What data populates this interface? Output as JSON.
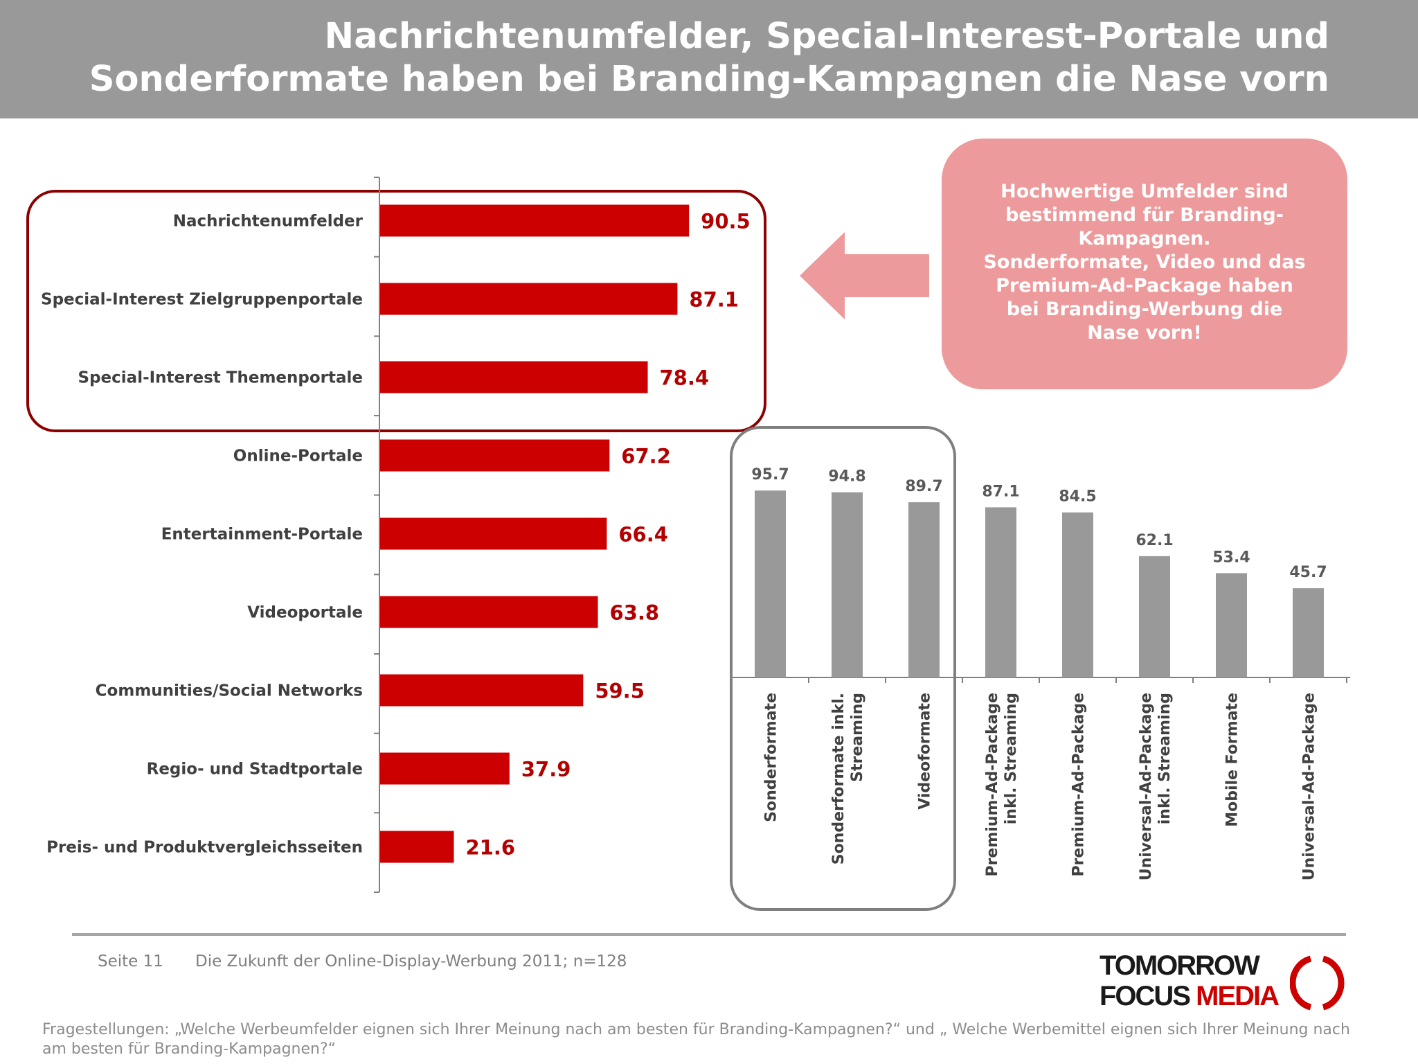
{
  "header": {
    "title_line1": "Nachrichtenumfelder, Special-Interest-Portale und",
    "title_line2": "Sonderformate haben bei Branding-Kampagnen die Nase vorn"
  },
  "callout": {
    "lines": [
      "Hochwertige Umfelder sind",
      "bestimmend für Branding-",
      "Kampagnen.",
      "Sonderformate, Video und das",
      "Premium-Ad-Package haben",
      "bei Branding-Werbung die",
      "Nase vorn!"
    ]
  },
  "chart_data": [
    {
      "type": "bar",
      "orientation": "horizontal",
      "categories": [
        "Nachrichtenumfelder",
        "Special-Interest Zielgruppenportale",
        "Special-Interest Themenportale",
        "Online-Portale",
        "Entertainment-Portale",
        "Videoportale",
        "Communities/Social Networks",
        "Regio- und Stadtportale",
        "Preis- und Produktvergleichsseiten"
      ],
      "values": [
        90.5,
        87.1,
        78.4,
        67.2,
        66.4,
        63.8,
        59.5,
        37.9,
        21.6
      ],
      "value_labels": [
        "90.5",
        "87.1",
        "78.4",
        "67.2",
        "66.4",
        "63.8",
        "59.5",
        "37.9",
        "21.6"
      ],
      "highlighted": [
        "Nachrichtenumfelder",
        "Special-Interest Zielgruppenportale",
        "Special-Interest Themenportale"
      ],
      "xlim": [
        0,
        100
      ],
      "bar_color": "#cc0000",
      "label_color": "#b30000"
    },
    {
      "type": "bar",
      "orientation": "vertical",
      "categories": [
        [
          "Sonderformate"
        ],
        [
          "Sonderformate inkl.",
          "Streaming"
        ],
        [
          "Videoformate"
        ],
        [
          "Premium-Ad-Package",
          "inkl. Streaming"
        ],
        [
          "Premium-Ad-Package"
        ],
        [
          "Universal-Ad-Package",
          "inkl. Streaming"
        ],
        [
          "Mobile Formate"
        ],
        [
          "Universal-Ad-Package"
        ]
      ],
      "values": [
        95.7,
        94.8,
        89.7,
        87.1,
        84.5,
        62.1,
        53.4,
        45.7
      ],
      "value_labels": [
        "95.7",
        "94.8",
        "89.7",
        "87.1",
        "84.5",
        "62.1",
        "53.4",
        "45.7"
      ],
      "highlighted": [
        "Sonderformate",
        "Sonderformate inkl. Streaming",
        "Videoformate"
      ],
      "ylim": [
        0,
        100
      ],
      "bar_color": "#999999",
      "label_color": "#595959"
    }
  ],
  "colors": {
    "header_bg": "#999999",
    "callout_bg": "#ed9a9c",
    "arrow": "#ed9a9c",
    "highlight_box": "#8b0000",
    "gray_box": "#7f7f7f"
  },
  "footer": {
    "page": "Seite 11",
    "source": "Die Zukunft der Online-Display-Werbung 2011; n=128",
    "question": "Fragestellungen: „Welche Werbeumfelder eignen sich Ihrer Meinung nach am besten für Branding-Kampagnen?“ und „ Welche Werbemittel eignen sich Ihrer Meinung nach am besten für Branding-Kampagnen?“"
  },
  "logo": {
    "line1": "TOMORROW",
    "line2_part1": "FOCUS ",
    "line2_part2": "MEDIA"
  }
}
